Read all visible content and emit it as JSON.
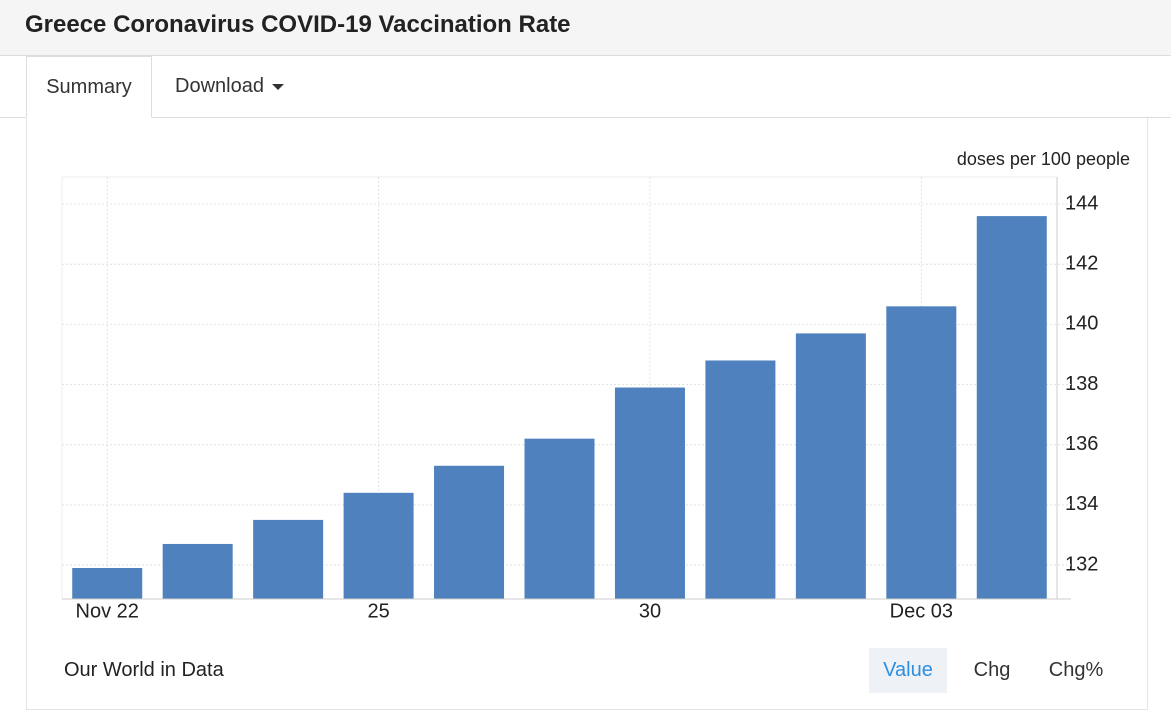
{
  "header": {
    "title": "Greece Coronavirus COVID-19 Vaccination Rate"
  },
  "tabs": [
    "Summary",
    "Download"
  ],
  "source": "Our World in Data",
  "buttons": [
    "Value",
    "Chg",
    "Chg%"
  ],
  "chart_data": {
    "type": "bar",
    "y_label": "doses per 100 people",
    "categories": [
      "Nov 22",
      null,
      null,
      "25",
      null,
      null,
      "30",
      null,
      null,
      "Dec 03",
      null
    ],
    "values": [
      131.9,
      132.7,
      133.5,
      134.4,
      135.3,
      136.2,
      137.9,
      138.8,
      139.7,
      140.6,
      143.6
    ],
    "color": "#4e81bd",
    "ylim": [
      130.87,
      144.9
    ],
    "yticks": [
      132,
      134,
      136,
      138,
      140,
      142,
      144
    ],
    "grid": true,
    "yaxis_side": "right"
  }
}
